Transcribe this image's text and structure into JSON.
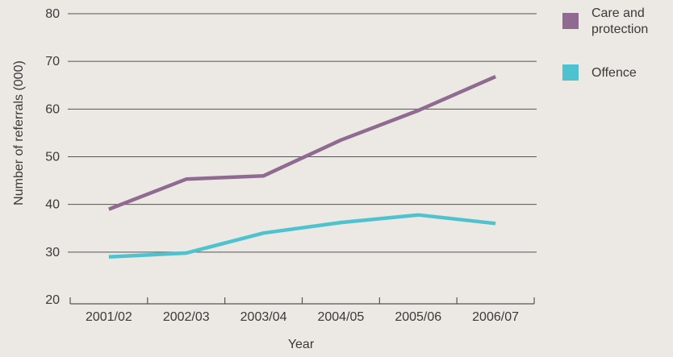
{
  "chart_data": {
    "type": "line",
    "title": "",
    "xlabel": "Year",
    "ylabel": "Number of referrals (000)",
    "categories": [
      "2001/02",
      "2002/03",
      "2003/04",
      "2004/05",
      "2005/06",
      "2006/07"
    ],
    "ylim": [
      20,
      80
    ],
    "yticks": [
      20,
      30,
      40,
      50,
      60,
      70,
      80
    ],
    "grid": true,
    "legend_position": "right",
    "series": [
      {
        "name": "Care and protection",
        "name_lines": [
          "Care and",
          "protection"
        ],
        "color": "#8f6b91",
        "values": [
          39,
          45.3,
          46,
          53.5,
          59.7,
          66.8
        ]
      },
      {
        "name": "Offence",
        "name_lines": [
          "Offence"
        ],
        "color": "#4ec3cf",
        "values": [
          29,
          29.8,
          34,
          36.2,
          37.8,
          36
        ]
      }
    ]
  }
}
